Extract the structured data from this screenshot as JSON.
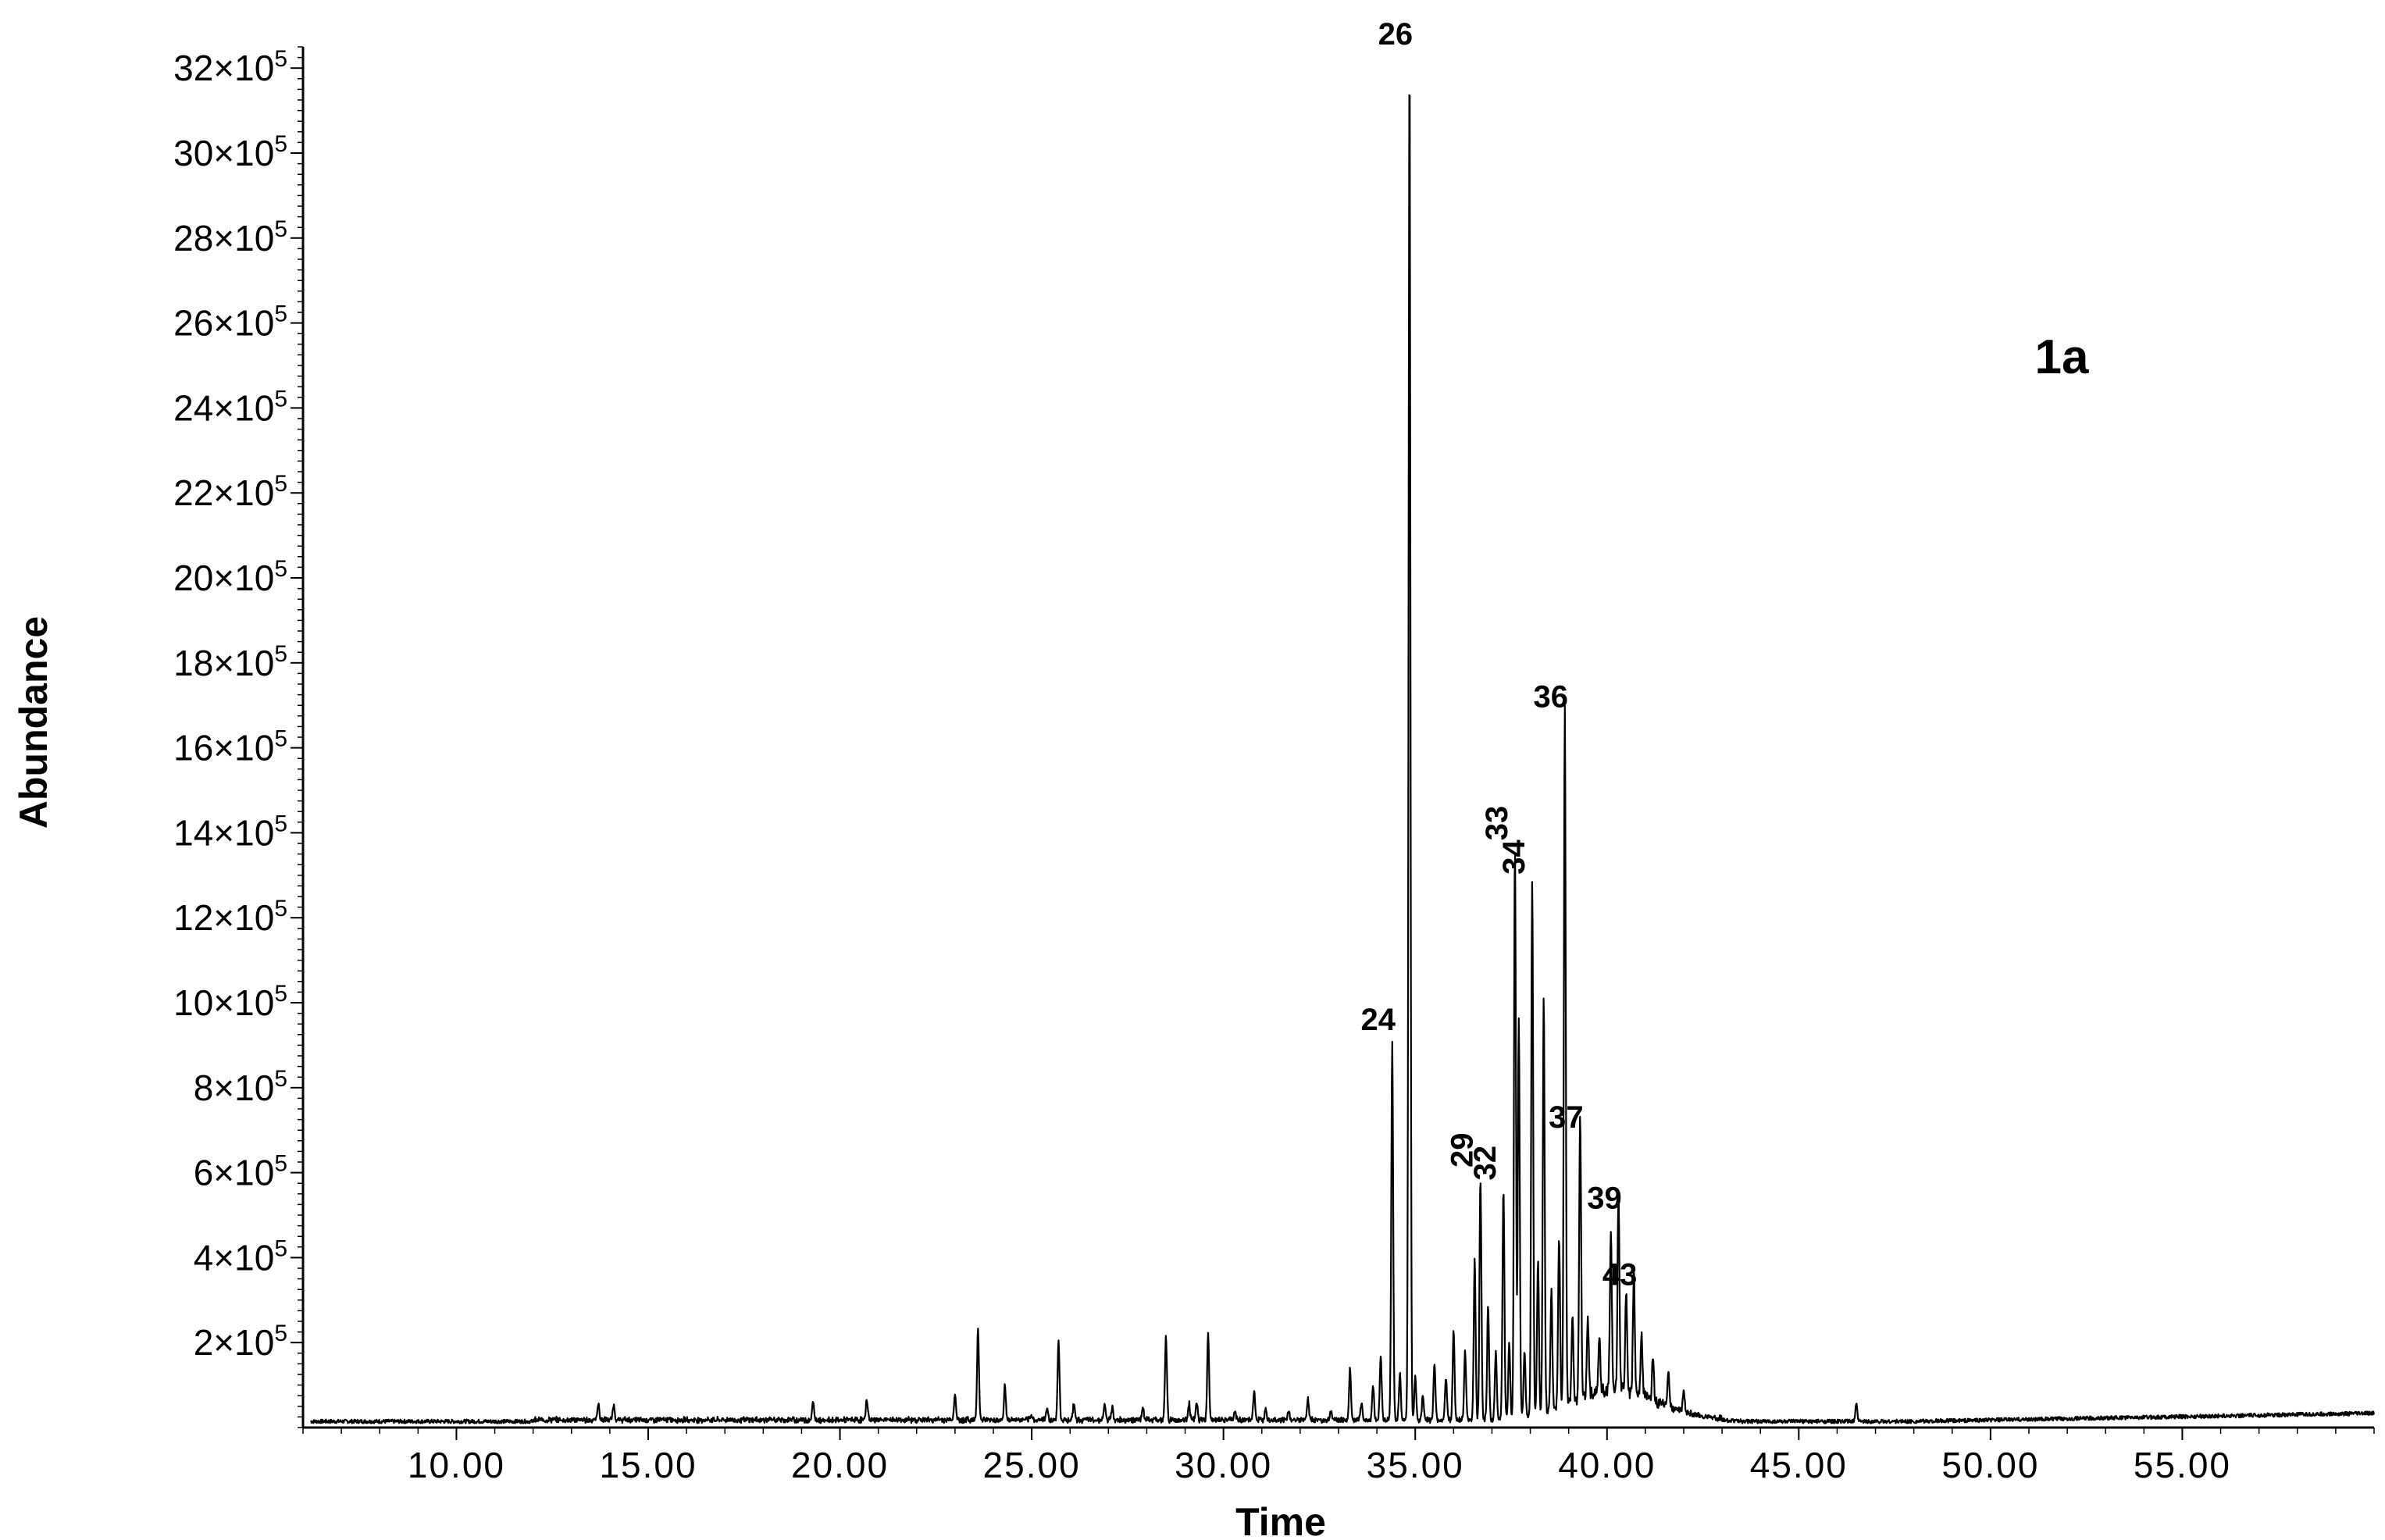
{
  "chart_data": {
    "type": "line",
    "panel_label": "1a",
    "xlabel": "Time",
    "ylabel": "Abundance",
    "xlim": [
      6.0,
      60.0
    ],
    "ylim": [
      0,
      3250000
    ],
    "x_ticks": [
      10,
      15,
      20,
      25,
      30,
      35,
      40,
      45,
      50,
      55
    ],
    "x_tick_labels": [
      "10.00",
      "15.00",
      "20.00",
      "25.00",
      "30.00",
      "35.00",
      "40.00",
      "45.00",
      "50.00",
      "55.00"
    ],
    "y_ticks": [
      200000,
      400000,
      600000,
      800000,
      1000000,
      1200000,
      1400000,
      1600000,
      1800000,
      2000000,
      2200000,
      2400000,
      2600000,
      2800000,
      3000000,
      3200000
    ],
    "y_tick_labels": [
      {
        "mantissa": "2×10",
        "exp": "5"
      },
      {
        "mantissa": "4×10",
        "exp": "5"
      },
      {
        "mantissa": "6×10",
        "exp": "5"
      },
      {
        "mantissa": "8×10",
        "exp": "5"
      },
      {
        "mantissa": "10×10",
        "exp": "5"
      },
      {
        "mantissa": "12×10",
        "exp": "5"
      },
      {
        "mantissa": "14×10",
        "exp": "5"
      },
      {
        "mantissa": "16×10",
        "exp": "5"
      },
      {
        "mantissa": "18×10",
        "exp": "5"
      },
      {
        "mantissa": "20×10",
        "exp": "5"
      },
      {
        "mantissa": "22×10",
        "exp": "5"
      },
      {
        "mantissa": "24×10",
        "exp": "5"
      },
      {
        "mantissa": "26×10",
        "exp": "5"
      },
      {
        "mantissa": "28×10",
        "exp": "5"
      },
      {
        "mantissa": "30×10",
        "exp": "5"
      },
      {
        "mantissa": "32×10",
        "exp": "5"
      }
    ],
    "baseline": 20000,
    "peaks": [
      {
        "x": 13.7,
        "y": 60000
      },
      {
        "x": 14.1,
        "y": 55000
      },
      {
        "x": 19.3,
        "y": 60000
      },
      {
        "x": 20.7,
        "y": 70000
      },
      {
        "x": 23.0,
        "y": 80000
      },
      {
        "x": 23.6,
        "y": 240000
      },
      {
        "x": 24.3,
        "y": 100000
      },
      {
        "x": 25.0,
        "y": 30000
      },
      {
        "x": 25.4,
        "y": 50000
      },
      {
        "x": 25.7,
        "y": 205000
      },
      {
        "x": 26.1,
        "y": 60000
      },
      {
        "x": 26.9,
        "y": 55000
      },
      {
        "x": 27.1,
        "y": 50000
      },
      {
        "x": 27.9,
        "y": 50000
      },
      {
        "x": 28.5,
        "y": 215000
      },
      {
        "x": 29.1,
        "y": 60000
      },
      {
        "x": 29.3,
        "y": 60000
      },
      {
        "x": 29.6,
        "y": 220000
      },
      {
        "x": 30.3,
        "y": 40000
      },
      {
        "x": 30.8,
        "y": 90000
      },
      {
        "x": 31.1,
        "y": 50000
      },
      {
        "x": 31.7,
        "y": 40000
      },
      {
        "x": 32.2,
        "y": 70000
      },
      {
        "x": 32.8,
        "y": 40000
      },
      {
        "x": 33.3,
        "y": 140000
      },
      {
        "x": 33.6,
        "y": 60000
      },
      {
        "x": 33.9,
        "y": 100000
      },
      {
        "x": 34.1,
        "y": 170000
      },
      {
        "x": 34.4,
        "y": 910000
      },
      {
        "x": 34.6,
        "y": 130000
      },
      {
        "x": 34.85,
        "y": 3230000
      },
      {
        "x": 35.0,
        "y": 120000
      },
      {
        "x": 35.2,
        "y": 80000
      },
      {
        "x": 35.5,
        "y": 150000
      },
      {
        "x": 35.8,
        "y": 120000
      },
      {
        "x": 36.0,
        "y": 230000
      },
      {
        "x": 36.3,
        "y": 180000
      },
      {
        "x": 36.55,
        "y": 400000
      },
      {
        "x": 36.7,
        "y": 590000
      },
      {
        "x": 36.9,
        "y": 290000
      },
      {
        "x": 37.1,
        "y": 180000
      },
      {
        "x": 37.3,
        "y": 560000
      },
      {
        "x": 37.45,
        "y": 200000
      },
      {
        "x": 37.6,
        "y": 1360000
      },
      {
        "x": 37.7,
        "y": 960000
      },
      {
        "x": 37.85,
        "y": 170000
      },
      {
        "x": 38.05,
        "y": 1280000
      },
      {
        "x": 38.2,
        "y": 380000
      },
      {
        "x": 38.35,
        "y": 1000000
      },
      {
        "x": 38.55,
        "y": 300000
      },
      {
        "x": 38.75,
        "y": 420000
      },
      {
        "x": 38.9,
        "y": 1670000
      },
      {
        "x": 39.1,
        "y": 220000
      },
      {
        "x": 39.3,
        "y": 680000
      },
      {
        "x": 39.5,
        "y": 200000
      },
      {
        "x": 39.8,
        "y": 160000
      },
      {
        "x": 40.1,
        "y": 400000
      },
      {
        "x": 40.3,
        "y": 490000
      },
      {
        "x": 40.5,
        "y": 260000
      },
      {
        "x": 40.7,
        "y": 310000
      },
      {
        "x": 40.9,
        "y": 160000
      },
      {
        "x": 41.2,
        "y": 120000
      },
      {
        "x": 41.6,
        "y": 100000
      },
      {
        "x": 42.0,
        "y": 70000
      },
      {
        "x": 46.5,
        "y": 60000
      }
    ],
    "peak_labels": [
      {
        "text": "24",
        "x": 34.4,
        "y": 910000,
        "rotated": false
      },
      {
        "text": "26",
        "x": 34.85,
        "y": 3230000,
        "rotated": false
      },
      {
        "text": "29",
        "x": 36.7,
        "y": 590000,
        "rotated": true
      },
      {
        "text": "32",
        "x": 37.3,
        "y": 560000,
        "rotated": true
      },
      {
        "text": "33",
        "x": 37.6,
        "y": 1360000,
        "rotated": true
      },
      {
        "text": "34",
        "x": 38.05,
        "y": 1280000,
        "rotated": true
      },
      {
        "text": "36",
        "x": 38.9,
        "y": 1670000,
        "rotated": false
      },
      {
        "text": "37",
        "x": 39.3,
        "y": 680000,
        "rotated": false
      },
      {
        "text": "39",
        "x": 40.3,
        "y": 490000,
        "rotated": false
      },
      {
        "text": "43",
        "x": 40.7,
        "y": 310000,
        "rotated": false
      }
    ]
  }
}
